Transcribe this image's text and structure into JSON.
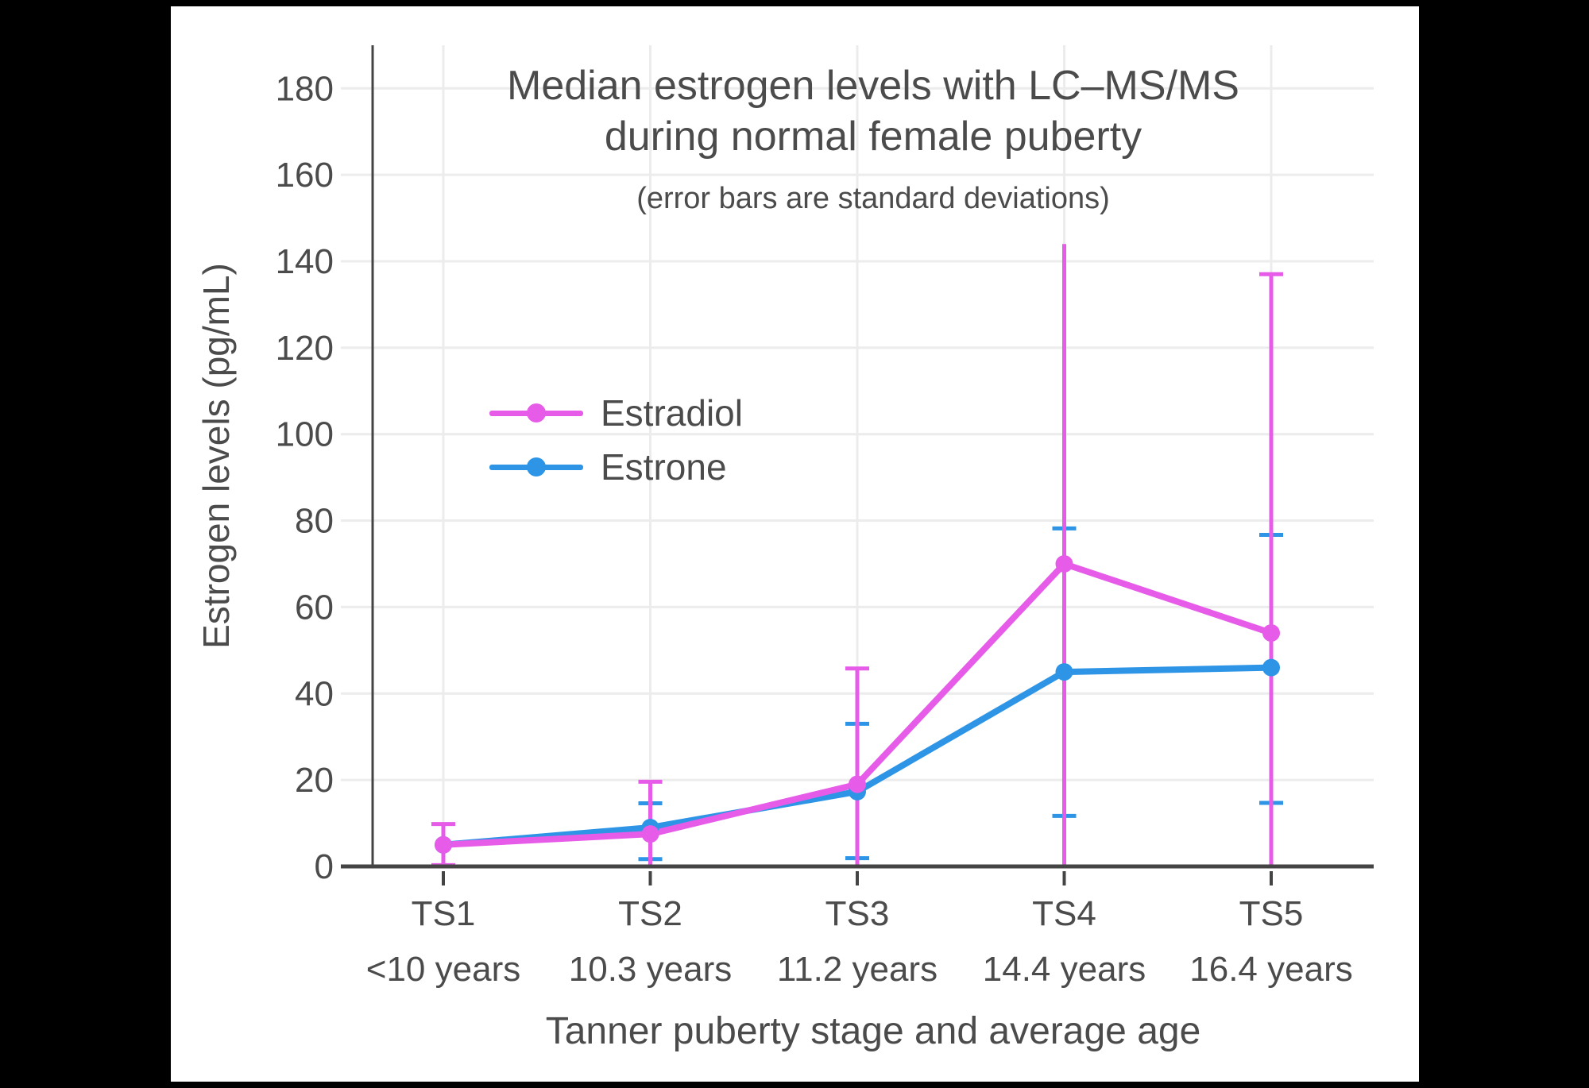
{
  "figure": {
    "background": "#000000",
    "canvas_background": "#FFFFFF",
    "grid_color": "#ECECEC",
    "axis_color": "#444444",
    "text_color": "#4B4B4B"
  },
  "chart_data": {
    "type": "line",
    "title_line1": "Median estrogen levels with LC–MS/MS",
    "title_line2": "during normal female puberty",
    "subtitle": "(error bars are standard deviations)",
    "xlabel": "Tanner puberty stage and average age",
    "ylabel": "Estrogen levels (pg/mL)",
    "categories": [
      "TS1",
      "TS2",
      "TS3",
      "TS4",
      "TS5"
    ],
    "category_sublabels": [
      "<10 years",
      "10.3 years",
      "11.2 years",
      "14.4 years",
      "16.4 years"
    ],
    "ylim": [
      0,
      190
    ],
    "yticks": [
      0,
      20,
      40,
      60,
      80,
      100,
      120,
      140,
      160,
      180
    ],
    "grid": true,
    "legend_position": "inside-upper-left",
    "error_bar_meaning": "standard deviations",
    "series": [
      {
        "name": "Estradiol",
        "color": "#E65CE8",
        "values": [
          5,
          7.5,
          19,
          70,
          54
        ],
        "error_upper": [
          9.8,
          19.6,
          45.8,
          144,
          137
        ],
        "error_lower": [
          0.3,
          0,
          0,
          0,
          0
        ],
        "upper_caps": [
          true,
          true,
          true,
          false,
          true
        ],
        "lower_caps": [
          true,
          false,
          false,
          false,
          false
        ]
      },
      {
        "name": "Estrone",
        "color": "#2E95E6",
        "values": [
          5,
          9,
          17.3,
          45,
          46
        ],
        "error_upper": [
          null,
          14.6,
          33,
          78.2,
          76.7
        ],
        "error_lower": [
          null,
          1.7,
          1.9,
          11.7,
          14.7
        ],
        "upper_caps": [
          false,
          true,
          true,
          true,
          true
        ],
        "lower_caps": [
          false,
          true,
          true,
          true,
          true
        ]
      }
    ]
  }
}
